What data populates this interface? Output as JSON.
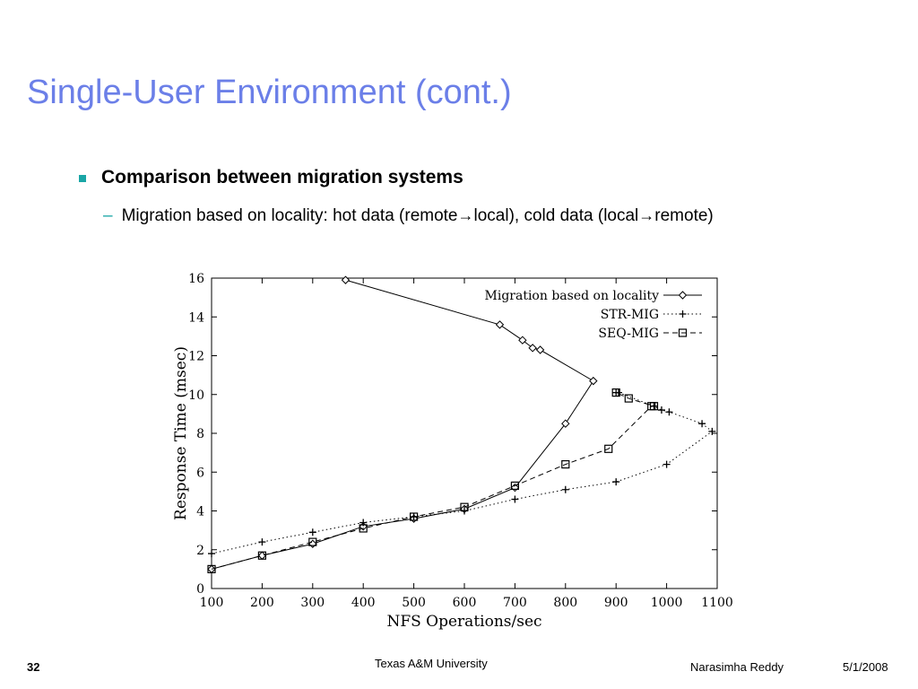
{
  "slide": {
    "title": "Single-User Environment (cont.)",
    "bullet1": "Comparison between migration systems",
    "bullet2": {
      "prefix": "Migration based on locality: hot data (remote",
      "middle": "local), cold data (local",
      "suffix": "remote)",
      "arrow": "→"
    },
    "footer": {
      "page": "32",
      "university": "Texas A&M University",
      "author": "Narasimha Reddy",
      "date": "5/1/2008"
    },
    "colors": {
      "title": "#6b7fe8",
      "bullet_marker": "#1aa6a6"
    }
  },
  "chart_data": {
    "type": "line",
    "xlabel": "NFS Operations/sec",
    "ylabel": "Response Time (msec)",
    "xlim": [
      100,
      1100
    ],
    "ylim": [
      0,
      16
    ],
    "xticks": [
      100,
      200,
      300,
      400,
      500,
      600,
      700,
      800,
      900,
      1000,
      1100
    ],
    "yticks": [
      0,
      2,
      4,
      6,
      8,
      10,
      12,
      14,
      16
    ],
    "grid": false,
    "legend_position": "top-right",
    "series": [
      {
        "name": "Migration based on locality",
        "marker": "diamond",
        "line": "solid",
        "points": [
          [
            100,
            1.0
          ],
          [
            200,
            1.7
          ],
          [
            300,
            2.3
          ],
          [
            400,
            3.2
          ],
          [
            500,
            3.6
          ],
          [
            600,
            4.1
          ],
          [
            700,
            5.2
          ],
          [
            800,
            8.5
          ],
          [
            855,
            10.7
          ],
          [
            750,
            12.3
          ],
          [
            735,
            12.4
          ],
          [
            715,
            12.8
          ],
          [
            670,
            13.6
          ],
          [
            365,
            15.9
          ]
        ]
      },
      {
        "name": "STR-MIG",
        "marker": "plus",
        "line": "dotted",
        "points": [
          [
            100,
            1.8
          ],
          [
            200,
            2.4
          ],
          [
            300,
            2.9
          ],
          [
            400,
            3.4
          ],
          [
            500,
            3.7
          ],
          [
            600,
            4.0
          ],
          [
            700,
            4.6
          ],
          [
            800,
            5.1
          ],
          [
            900,
            5.5
          ],
          [
            1000,
            6.4
          ],
          [
            1090,
            8.1
          ],
          [
            1070,
            8.5
          ],
          [
            1005,
            9.1
          ],
          [
            990,
            9.2
          ],
          [
            975,
            9.4
          ],
          [
            905,
            10.1
          ],
          [
            900,
            10.1
          ]
        ]
      },
      {
        "name": "SEQ-MIG",
        "marker": "square",
        "line": "dashed",
        "points": [
          [
            100,
            1.0
          ],
          [
            200,
            1.7
          ],
          [
            300,
            2.4
          ],
          [
            400,
            3.1
          ],
          [
            500,
            3.7
          ],
          [
            600,
            4.2
          ],
          [
            700,
            5.3
          ],
          [
            800,
            6.4
          ],
          [
            885,
            7.2
          ],
          [
            970,
            9.4
          ],
          [
            975,
            9.4
          ],
          [
            925,
            9.8
          ],
          [
            900,
            10.1
          ]
        ]
      }
    ]
  }
}
